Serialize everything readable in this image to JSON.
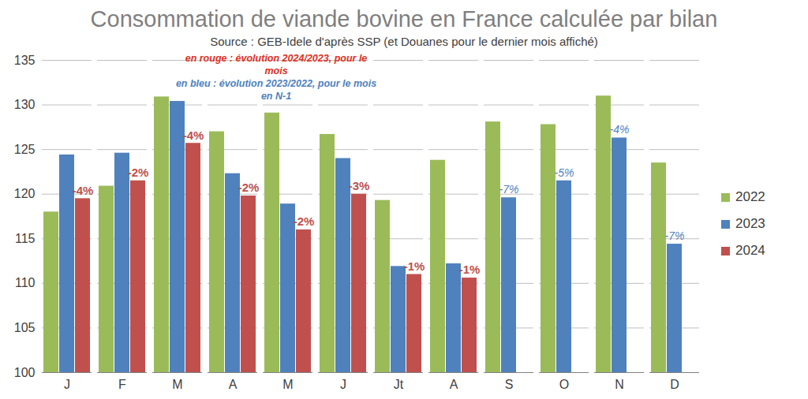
{
  "chart_data": {
    "type": "bar",
    "title": "Consommation de viande bovine en France calculée par bilan",
    "subtitle": "Source : GEB-Idele d'après SSP (et Douanes pour le dernier mois affiché)",
    "notes": [
      {
        "text": "en rouge : évolution 2024/2023, pour le mois",
        "color": "#e0301e"
      },
      {
        "text": "en bleu : évolution 2023/2022, pour le mois en N-1",
        "color": "#4f81bd"
      }
    ],
    "categories": [
      "J",
      "F",
      "M",
      "A",
      "M",
      "J",
      "Jt",
      "A",
      "S",
      "O",
      "N",
      "D"
    ],
    "series": [
      {
        "name": "2022",
        "color": "#9bbb59",
        "values": [
          118.0,
          120.9,
          130.9,
          127.0,
          129.1,
          126.7,
          119.3,
          123.8,
          128.1,
          127.8,
          131.0,
          123.5
        ],
        "annotations": [
          null,
          null,
          null,
          null,
          null,
          null,
          null,
          null,
          null,
          null,
          null,
          null
        ]
      },
      {
        "name": "2023",
        "color": "#4f81bd",
        "values": [
          124.4,
          124.6,
          130.4,
          122.3,
          118.9,
          124.0,
          111.9,
          112.2,
          119.6,
          121.5,
          126.3,
          114.4
        ],
        "annotations": [
          null,
          null,
          null,
          null,
          null,
          null,
          null,
          null,
          "-7%",
          "-5%",
          "-4%",
          "-7%"
        ]
      },
      {
        "name": "2024",
        "color": "#c0504d",
        "values": [
          119.5,
          121.5,
          125.7,
          119.8,
          116.0,
          120.0,
          111.0,
          110.6,
          null,
          null,
          null,
          null
        ],
        "annotations": [
          "-4%",
          "-2%",
          "-4%",
          "-2%",
          "-2%",
          "-3%",
          "-1%",
          "-1%",
          null,
          null,
          null,
          null
        ]
      }
    ],
    "ylim": [
      100,
      135
    ],
    "yticks": [
      100,
      105,
      110,
      115,
      120,
      125,
      130,
      135
    ],
    "grid": true,
    "legend": "right"
  }
}
